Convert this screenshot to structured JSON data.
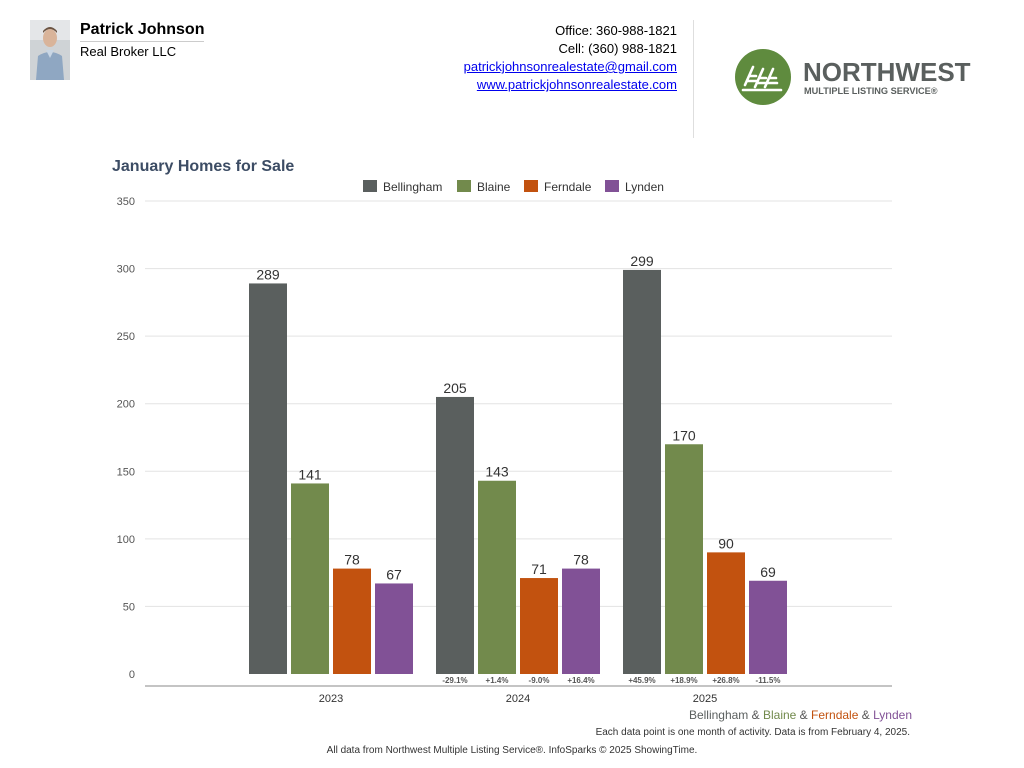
{
  "header": {
    "agent_name": "Patrick Johnson",
    "company": "Real Broker LLC",
    "office": "Office: 360-988-1821",
    "cell": "Cell: (360) 988-1821",
    "email": "patrickjohnsonrealestate@gmail.com",
    "website": "www.patrickjohnsonrealestate.com",
    "logo": {
      "line1": "NORTHWEST",
      "line2": "MULTIPLE LISTING SERVICE®",
      "color": "#5f8b3e"
    }
  },
  "chart_data": {
    "type": "bar",
    "title": "January Homes for Sale",
    "categories": [
      "2023",
      "2024",
      "2025"
    ],
    "ylim": [
      0,
      350
    ],
    "yticks": [
      "0",
      "50",
      "100",
      "150",
      "200",
      "250",
      "300",
      "350"
    ],
    "grid": true,
    "legend_position": "top",
    "series": [
      {
        "name": "Bellingham",
        "color": "#5a5f5e",
        "values": [
          289,
          205,
          299
        ],
        "changes": [
          "",
          "-29.1%",
          "+45.9%"
        ]
      },
      {
        "name": "Blaine",
        "color": "#728a4c",
        "values": [
          141,
          143,
          170
        ],
        "changes": [
          "",
          "+1.4%",
          "+18.9%"
        ]
      },
      {
        "name": "Ferndale",
        "color": "#c2520f",
        "values": [
          78,
          71,
          90
        ],
        "changes": [
          "",
          "-9.0%",
          "+26.8%"
        ]
      },
      {
        "name": "Lynden",
        "color": "#815196",
        "values": [
          67,
          78,
          69
        ],
        "changes": [
          "",
          "+16.4%",
          "-11.5%"
        ]
      }
    ]
  },
  "footer": {
    "series_line": [
      "Bellingham",
      " & ",
      "Blaine",
      " & ",
      "Ferndale",
      " & ",
      "Lynden"
    ],
    "note": "Each data point is one month of activity. Data is from February 4, 2025.",
    "source": "All data from Northwest Multiple Listing Service®. InfoSparks © 2025 ShowingTime."
  }
}
